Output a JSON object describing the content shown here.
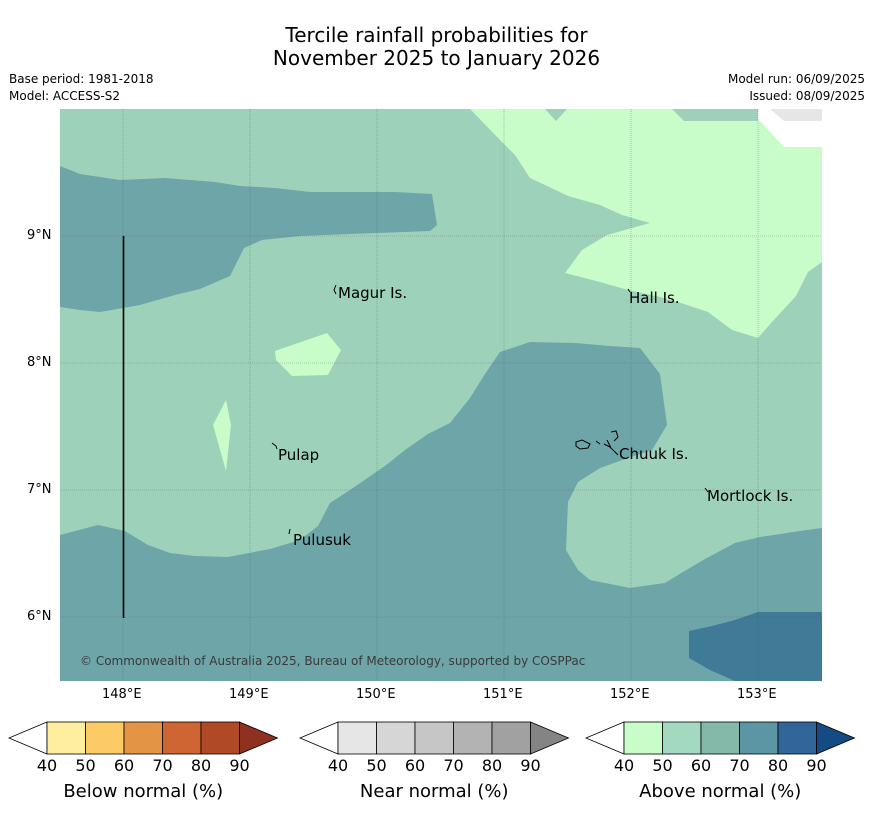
{
  "title_line1": "Tercile rainfall probabilities for",
  "title_line2": "November 2025 to January 2026",
  "base_period": "Base period: 1981-2018",
  "model": "Model: ACCESS-S2",
  "model_run": "Model run: 06/09/2025",
  "issued": "Issued: 08/09/2025",
  "map": {
    "lat_ticks": [
      "9°N",
      "8°N",
      "7°N",
      "6°N"
    ],
    "lon_ticks": [
      "148°E",
      "149°E",
      "150°E",
      "151°E",
      "152°E",
      "153°E"
    ],
    "places": [
      "Magur Is.",
      "Hall Is.",
      "Pulap",
      "Chuuk Is.",
      "Mortlock Is.",
      "Pulusuk"
    ],
    "copyright": "© Commonwealth of Australia 2025, Bureau of Meteorology, supported by COSPPac",
    "colors": {
      "above_50_60": "#9dd1ba",
      "above_40_50": "#c8fcc8",
      "above_70_80": "#6da5a9",
      "above_80_90": "#3f7a96",
      "near_40_50": "#e6e6e6"
    }
  },
  "colorbars": [
    {
      "label": "Below normal (%)",
      "ticks": [
        "40",
        "50",
        "60",
        "70",
        "80",
        "90"
      ],
      "colors": [
        "#ffffff",
        "#ffeda0",
        "#fdcb65",
        "#e39545",
        "#cf6532",
        "#b04a26",
        "#8f3120"
      ]
    },
    {
      "label": "Near normal (%)",
      "ticks": [
        "40",
        "50",
        "60",
        "70",
        "80",
        "90"
      ],
      "colors": [
        "#ffffff",
        "#e6e6e6",
        "#d6d6d6",
        "#c6c6c6",
        "#b3b3b3",
        "#a1a1a1",
        "#848484"
      ]
    },
    {
      "label": "Above normal (%)",
      "ticks": [
        "40",
        "50",
        "60",
        "70",
        "80",
        "90"
      ],
      "colors": [
        "#ffffff",
        "#c8fcc8",
        "#a3d9c0",
        "#84b8a8",
        "#5c95a3",
        "#32669a",
        "#154b83"
      ]
    }
  ]
}
